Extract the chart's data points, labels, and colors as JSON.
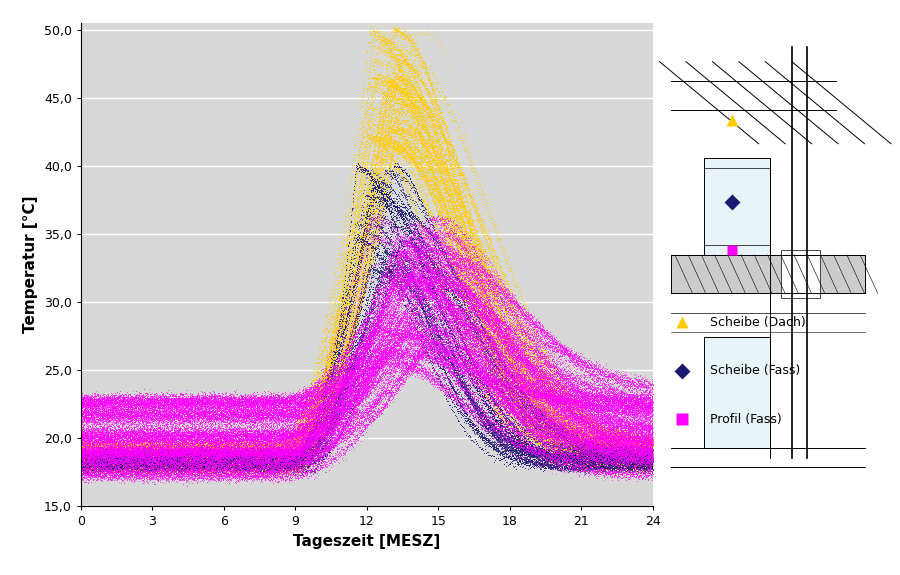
{
  "title": "",
  "xlabel": "Tageszeit [MESZ]",
  "ylabel": "Temperatur [°C]",
  "xlim": [
    0,
    24
  ],
  "ylim": [
    15.0,
    50.5
  ],
  "xticks": [
    0,
    3,
    6,
    9,
    12,
    15,
    18,
    21,
    24
  ],
  "yticks": [
    15.0,
    20.0,
    25.0,
    30.0,
    35.0,
    40.0,
    45.0,
    50.0
  ],
  "ytick_labels": [
    "15,0",
    "20,0",
    "25,0",
    "30,0",
    "35,0",
    "40,0",
    "45,0",
    "50,0"
  ],
  "bg_color": "#d8d8d8",
  "fig_color": "#ffffff",
  "colors": {
    "yellow": "#ffcc00",
    "blue": "#191970",
    "magenta": "#ff00ff"
  },
  "legend": [
    {
      "label": "Scheibe (Dach)",
      "color": "#ffcc00",
      "marker": "^"
    },
    {
      "label": "Scheibe (Fass)",
      "color": "#191970",
      "marker": "D"
    },
    {
      "label": "Profil (Fass)",
      "color": "#ff00ff",
      "marker": "s"
    }
  ],
  "seed": 12345
}
